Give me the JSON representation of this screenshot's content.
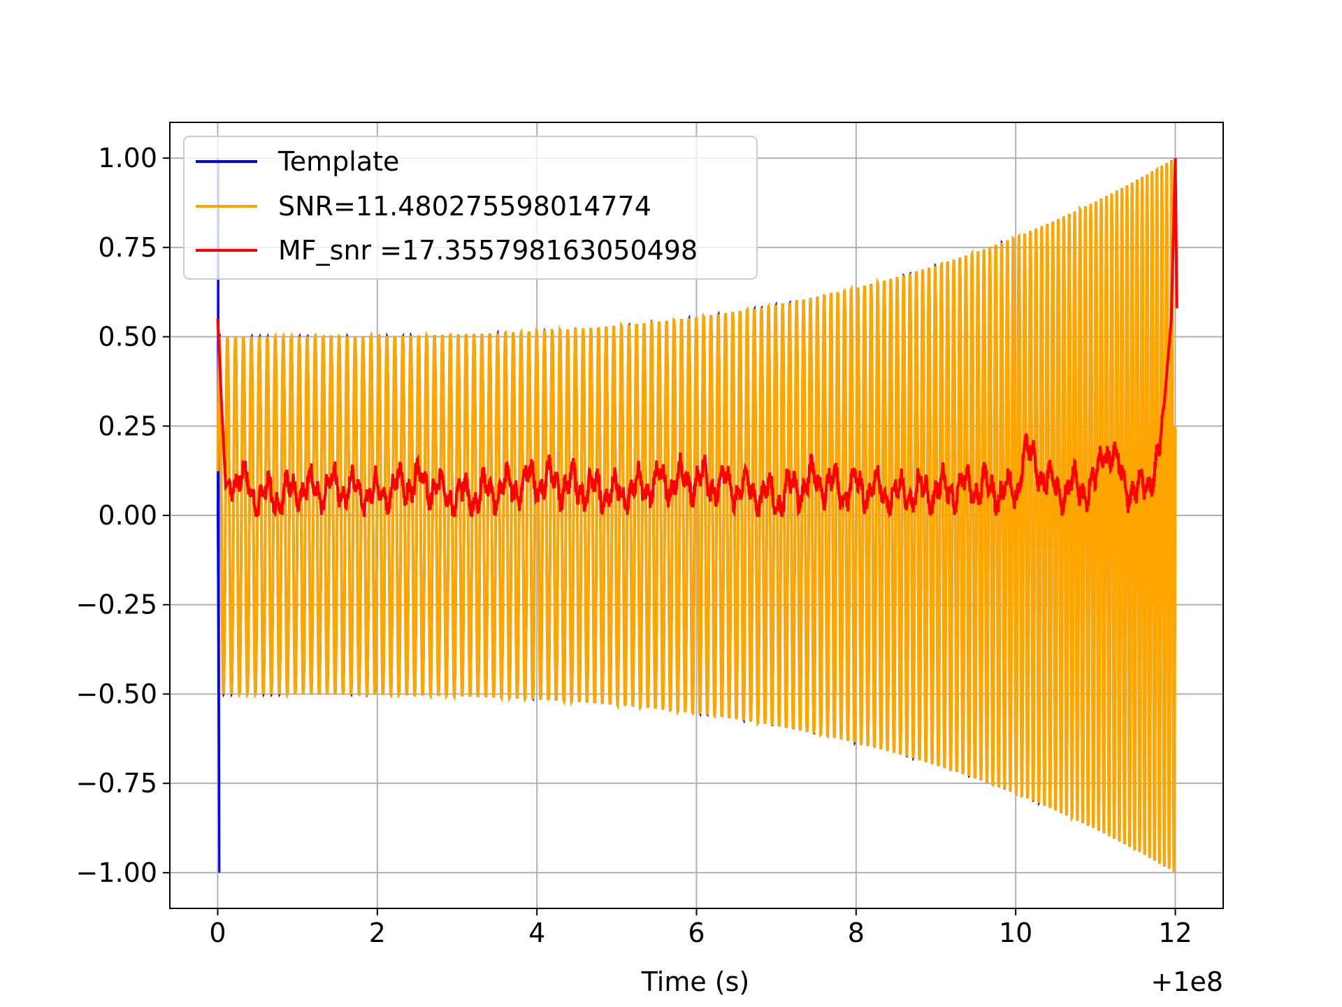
{
  "chart_data": {
    "type": "line",
    "title": "",
    "xlabel": "Time (s)",
    "ylabel": "",
    "x_offset_label": "+1e8",
    "xlim": [
      -0.6,
      12.6
    ],
    "ylim": [
      -1.1,
      1.1
    ],
    "xticks": [
      0,
      2,
      4,
      6,
      8,
      10,
      12
    ],
    "xtick_labels": [
      "0",
      "2",
      "4",
      "6",
      "8",
      "10",
      "12"
    ],
    "yticks": [
      1.0,
      0.75,
      0.5,
      0.25,
      0.0,
      -0.25,
      -0.5,
      -0.75,
      -1.0
    ],
    "ytick_labels": [
      "1.00",
      "0.75",
      "0.50",
      "0.25",
      "0.00",
      "−0.25",
      "−0.50",
      "−0.75",
      "−1.00"
    ],
    "grid": true,
    "legend_position": "top-left",
    "series": [
      {
        "name": "Template",
        "color": "#0000ff",
        "description_points": {
          "t_start": 0.0,
          "t_end": 12.0,
          "initial_spike": [
            0.02,
            1.0,
            -1.0
          ],
          "envelope_start": 0.5,
          "envelope_end": 1.0,
          "cycles_approx": 120
        }
      },
      {
        "name": "SNR=11.480275598014774",
        "color": "#ffa500",
        "description_points": {
          "t_start": 0.0,
          "t_end": 12.0,
          "envelope_start": 0.5,
          "envelope_end": 1.0
        }
      },
      {
        "name": "MF_snr =17.355798163050498",
        "color": "#ff0000",
        "keypoints_x": [
          0.0,
          0.05,
          0.1,
          0.2,
          0.5,
          1.0,
          1.5,
          2.0,
          2.5,
          3.0,
          3.5,
          4.0,
          4.5,
          5.0,
          5.5,
          6.0,
          6.5,
          7.0,
          7.5,
          7.8,
          8.0,
          8.5,
          9.0,
          9.5,
          10.0,
          10.1,
          10.5,
          11.0,
          11.1,
          11.5,
          11.8,
          11.95,
          12.0,
          12.02
        ],
        "keypoints_y": [
          0.55,
          0.3,
          0.08,
          0.12,
          0.05,
          0.07,
          0.08,
          0.06,
          0.1,
          0.05,
          0.07,
          0.1,
          0.08,
          0.06,
          0.09,
          0.1,
          0.08,
          0.05,
          0.1,
          0.07,
          0.08,
          0.06,
          0.07,
          0.08,
          0.06,
          0.18,
          0.07,
          0.08,
          0.2,
          0.05,
          0.15,
          0.55,
          1.0,
          0.58
        ]
      }
    ]
  }
}
